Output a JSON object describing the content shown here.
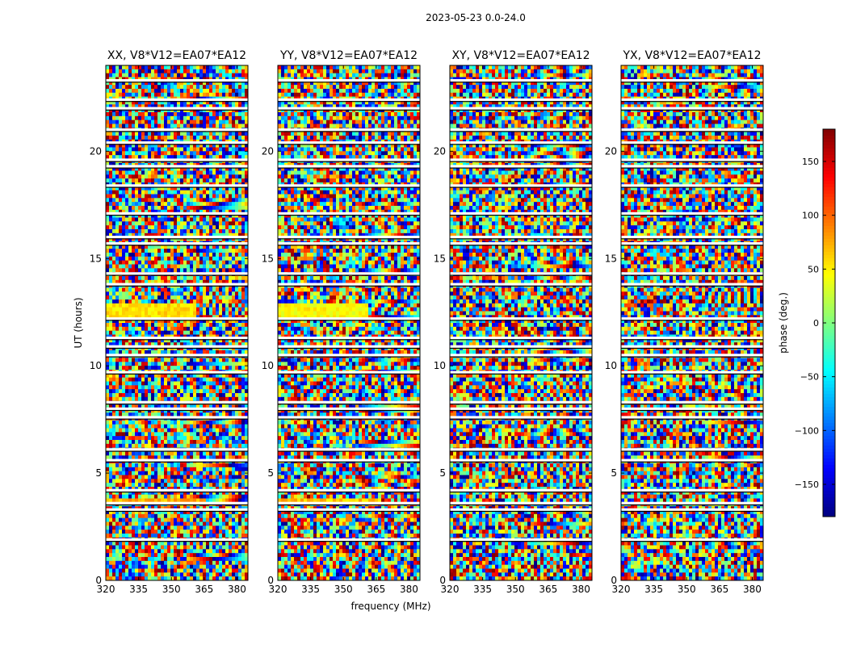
{
  "chart_data": {
    "type": "heatmap",
    "suptitle": "2023-05-23 0.0-24.0",
    "ylabel": "UT (hours)",
    "xlabel": "frequency (MHz)",
    "xlim": [
      320,
      385
    ],
    "ylim": [
      0,
      24
    ],
    "xticks": [
      320,
      335,
      350,
      365,
      380
    ],
    "yticks": [
      0,
      5,
      10,
      15,
      20
    ],
    "panels": [
      {
        "title": "XX, V8*V12=EA07*EA12",
        "seed": 11,
        "bright_band": true,
        "band_phase": 55
      },
      {
        "title": "YY, V8*V12=EA07*EA12",
        "seed": 23,
        "bright_band": true,
        "band_phase": 45
      },
      {
        "title": "XY, V8*V12=EA07*EA12",
        "seed": 37,
        "bright_band": false,
        "band_phase": 120
      },
      {
        "title": "YX, V8*V12=EA07*EA12",
        "seed": 53,
        "bright_band": false,
        "band_phase": 170
      }
    ],
    "flagged_time_hours": [
      1.9,
      3.3,
      3.6,
      4.2,
      5.6,
      6.1,
      7.6,
      8.0,
      8.3,
      9.7,
      10.5,
      10.9,
      11.3,
      12.2,
      13.8,
      14.3,
      15.7,
      16.0,
      17.1,
      18.4,
      19.3,
      19.6,
      20.4,
      21.0,
      22.0,
      22.4,
      23.3
    ],
    "colorbar": {
      "label": "phase (deg.)",
      "vmin": -180,
      "vmax": 180,
      "ticks": [
        -150,
        -100,
        -50,
        0,
        50,
        100,
        150
      ],
      "tick_labels": [
        "−150",
        "−100",
        "−50",
        "0",
        "50",
        "100",
        "150"
      ],
      "colormap": "jet"
    }
  }
}
